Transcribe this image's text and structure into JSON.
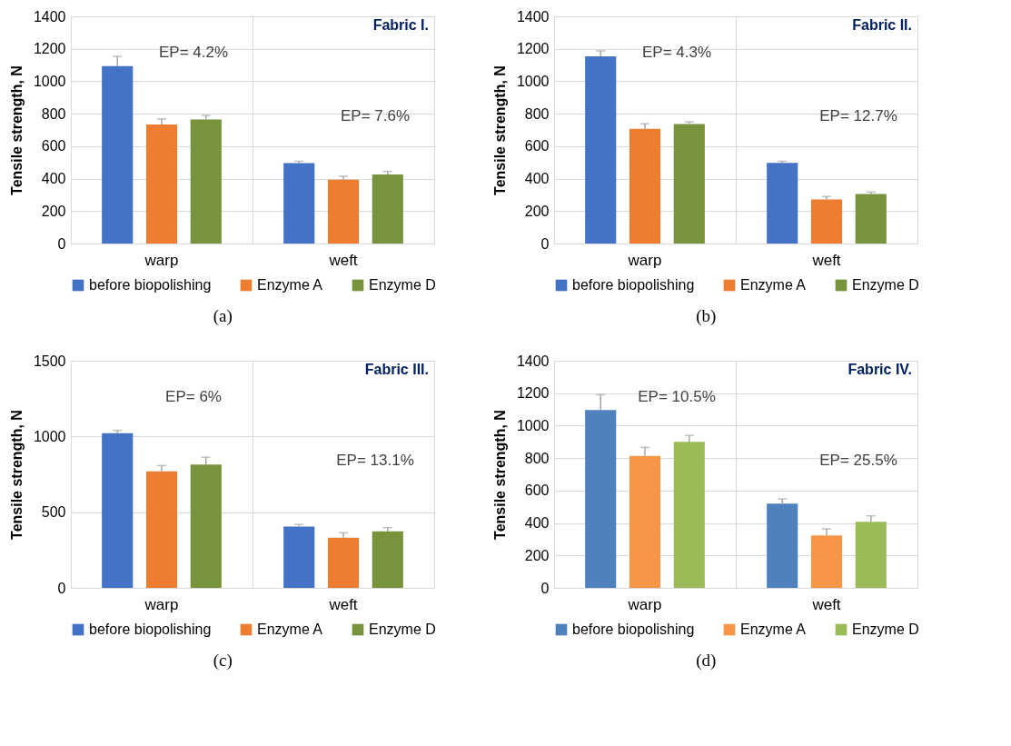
{
  "chart_data": [
    {
      "type": "bar",
      "title": "Fabric I.",
      "ylabel": "Tensile strength, N",
      "categories": [
        "warp",
        "weft"
      ],
      "ylim": [
        0,
        1400
      ],
      "yticks": [
        0,
        200,
        400,
        600,
        800,
        1000,
        1200,
        1400
      ],
      "grid": true,
      "legend": "bottom",
      "series": [
        {
          "name": "before biopolishing",
          "color": "#4472c4",
          "values": [
            1094,
            495
          ],
          "errors": [
            [
              1094,
              1154
            ],
            [
              495,
              507
            ]
          ]
        },
        {
          "name": "Enzyme A",
          "color": "#ed7d31",
          "values": [
            733,
            394
          ],
          "errors": [
            [
              733,
              768
            ],
            [
              394,
              415
            ]
          ]
        },
        {
          "name": "Enzyme D",
          "color": "#77933c",
          "values": [
            764,
            425
          ],
          "errors": [
            [
              764,
              789
            ],
            [
              425,
              444
            ]
          ]
        }
      ],
      "annotations": [
        "EP= 4.2%",
        "EP= 7.6%",
        "(a)"
      ]
    },
    {
      "type": "bar",
      "title": "Fabric II.",
      "ylabel": "Tensile strength, N",
      "categories": [
        "warp",
        "weft"
      ],
      "ylim": [
        0,
        1400
      ],
      "yticks": [
        0,
        200,
        400,
        600,
        800,
        1000,
        1200,
        1400
      ],
      "grid": true,
      "legend": "bottom",
      "series": [
        {
          "name": "before biopolishing",
          "color": "#4472c4",
          "values": [
            1153,
            497
          ],
          "errors": [
            [
              1153,
              1187
            ],
            [
              497,
              507
            ]
          ]
        },
        {
          "name": "Enzyme A",
          "color": "#ed7d31",
          "values": [
            707,
            272
          ],
          "errors": [
            [
              707,
              738
            ],
            [
              272,
              290
            ]
          ]
        },
        {
          "name": "Enzyme D",
          "color": "#77933c",
          "values": [
            736,
            305
          ],
          "errors": [
            [
              736,
              750
            ],
            [
              305,
              317
            ]
          ]
        }
      ],
      "annotations": [
        "EP= 4.3%",
        "EP= 12.7%",
        "(b)"
      ]
    },
    {
      "type": "bar",
      "title": "Fabric III.",
      "ylabel": "Tensile strength, N",
      "categories": [
        "warp",
        "weft"
      ],
      "ylim": [
        0,
        1500
      ],
      "yticks": [
        0,
        500,
        1000,
        1500
      ],
      "grid": true,
      "legend": "bottom",
      "series": [
        {
          "name": "before biopolishing",
          "color": "#4472c4",
          "values": [
            1021,
            405
          ],
          "errors": [
            [
              1021,
              1040
            ],
            [
              405,
              419
            ]
          ]
        },
        {
          "name": "Enzyme A",
          "color": "#ed7d31",
          "values": [
            769,
            331
          ],
          "errors": [
            [
              769,
              808
            ],
            [
              331,
              364
            ]
          ]
        },
        {
          "name": "Enzyme D",
          "color": "#77933c",
          "values": [
            815,
            374
          ],
          "errors": [
            [
              815,
              863
            ],
            [
              374,
              398
            ]
          ]
        }
      ],
      "annotations": [
        "EP= 6%",
        "EP= 13.1%",
        "(c)"
      ]
    },
    {
      "type": "bar",
      "title": "Fabric IV.",
      "ylabel": "Tensile strength, N",
      "categories": [
        "warp",
        "weft"
      ],
      "ylim": [
        0,
        1400
      ],
      "yticks": [
        0,
        200,
        400,
        600,
        800,
        1000,
        1200,
        1400
      ],
      "grid": true,
      "legend": "bottom",
      "series": [
        {
          "name": "before biopolishing",
          "color": "#4f81bd",
          "values": [
            1096,
            520
          ],
          "errors": [
            [
              1096,
              1190
            ],
            [
              520,
              548
            ]
          ]
        },
        {
          "name": "Enzyme A",
          "color": "#f79646",
          "values": [
            814,
            324
          ],
          "errors": [
            [
              814,
              866
            ],
            [
              324,
              364
            ]
          ]
        },
        {
          "name": "Enzyme D",
          "color": "#9bbb59",
          "values": [
            900,
            408
          ],
          "errors": [
            [
              900,
              940
            ],
            [
              408,
              444
            ]
          ]
        }
      ],
      "annotations": [
        "EP= 10.5%",
        "EP= 25.5%",
        "(d)"
      ]
    }
  ]
}
